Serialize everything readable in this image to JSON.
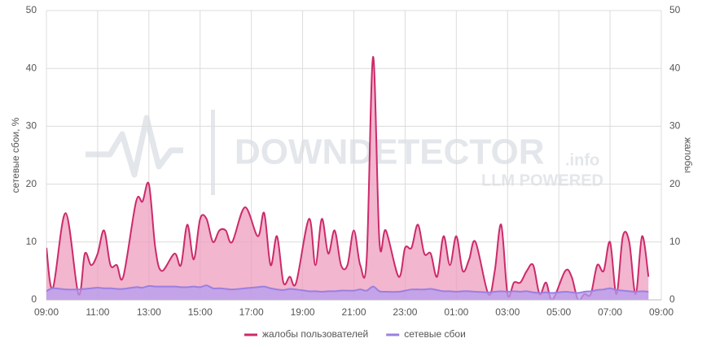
{
  "chart_data": {
    "type": "area",
    "y_label": "сетевые сбои, %",
    "y2_label": "жалобы",
    "x": [
      0,
      0.25,
      0.75,
      1.25,
      1.5,
      1.75,
      2,
      2.25,
      2.5,
      2.75,
      3,
      3.5,
      3.75,
      4,
      4.25,
      4.5,
      5,
      5.25,
      5.5,
      5.75,
      6,
      6.25,
      6.5,
      6.75,
      7,
      7.25,
      7.75,
      8.25,
      8.5,
      8.75,
      9,
      9.25,
      9.5,
      9.75,
      10.25,
      10.5,
      10.75,
      11,
      11.25,
      11.5,
      11.75,
      12,
      12.25,
      12.5,
      12.75,
      13,
      13.25,
      13.75,
      14,
      14.25,
      14.5,
      14.75,
      15,
      15.25,
      15.5,
      15.75,
      16,
      16.25,
      16.5,
      16.75,
      17.25,
      17.5,
      17.75,
      18,
      18.25,
      18.5,
      18.75,
      19,
      19.25,
      19.5,
      19.75,
      20.25,
      20.5,
      20.75,
      21,
      21.25,
      21.5,
      21.75,
      22,
      22.25,
      22.5,
      22.75,
      23,
      23.25,
      23.5
    ],
    "series": [
      {
        "name": "жалобы пользователей",
        "color": "#cc2a6a",
        "fill": "#ee9dbd",
        "axis": "y2",
        "values": [
          9,
          2,
          15,
          1,
          8,
          6,
          8,
          12,
          6,
          6,
          4,
          17,
          17,
          20,
          9,
          5,
          8,
          6,
          13,
          7,
          14,
          14,
          10,
          12,
          12,
          10,
          16,
          11,
          15,
          6,
          11,
          3,
          4,
          3,
          14,
          6,
          14,
          8,
          12,
          6,
          6,
          12,
          6,
          7,
          42,
          10,
          12,
          4,
          9,
          9,
          13,
          8,
          8,
          4,
          11,
          6,
          11,
          5,
          7,
          10,
          1,
          5,
          13,
          1,
          3,
          3,
          5,
          6,
          1,
          3,
          0,
          5,
          4,
          0,
          1,
          1,
          6,
          5,
          10,
          1,
          11,
          10,
          1,
          11,
          4
        ]
      },
      {
        "name": "сетевые сбои",
        "color": "#9b7fe0",
        "fill": "#b49cf0",
        "values": [
          1.5,
          2,
          1.8,
          1.8,
          1.9,
          2,
          2.1,
          2,
          2,
          1.9,
          1.9,
          2.2,
          2.1,
          2.4,
          2.3,
          2.3,
          2.3,
          2.2,
          2.2,
          2.3,
          2.2,
          2.5,
          2,
          2,
          1.9,
          1.8,
          2,
          2.2,
          2.3,
          2,
          1.8,
          1.7,
          1.9,
          1.8,
          1.5,
          1.5,
          1.4,
          1.5,
          1.5,
          1.6,
          1.6,
          1.6,
          1.8,
          1.6,
          2.3,
          1.5,
          1.4,
          1.4,
          1.6,
          1.8,
          1.8,
          1.8,
          1.9,
          1.7,
          1.5,
          1.5,
          1.4,
          1.5,
          1.5,
          1.4,
          1.3,
          1.4,
          1.5,
          1.4,
          1.5,
          1.4,
          1.5,
          1.3,
          1.2,
          1.3,
          1.2,
          1.4,
          1.3,
          1.2,
          1.4,
          1.5,
          1.7,
          1.8,
          2,
          1.7,
          1.6,
          1.5,
          1.4,
          1.5,
          1.4
        ]
      }
    ],
    "xlim": [
      0,
      24
    ],
    "xticks": [
      {
        "value": 0,
        "label": "09:00"
      },
      {
        "value": 2,
        "label": "11:00"
      },
      {
        "value": 4,
        "label": "13:00"
      },
      {
        "value": 6,
        "label": "15:00"
      },
      {
        "value": 8,
        "label": "17:00"
      },
      {
        "value": 10,
        "label": "19:00"
      },
      {
        "value": 12,
        "label": "21:00"
      },
      {
        "value": 14,
        "label": "23:00"
      },
      {
        "value": 16,
        "label": "01:00"
      },
      {
        "value": 18,
        "label": "03:00"
      },
      {
        "value": 20,
        "label": "05:00"
      },
      {
        "value": 22,
        "label": "07:00"
      },
      {
        "value": 24,
        "label": "09:00"
      }
    ],
    "ylim": [
      0,
      50
    ],
    "yticks": [
      0,
      10,
      20,
      30,
      40,
      50
    ],
    "y2lim": [
      0,
      50
    ],
    "y2ticks": [
      0,
      10,
      20,
      30,
      40,
      50
    ],
    "grid": true,
    "watermark": {
      "brand": "DOWNDETECTOR",
      "suffix": ".info",
      "tagline": "LLM POWERED"
    }
  }
}
